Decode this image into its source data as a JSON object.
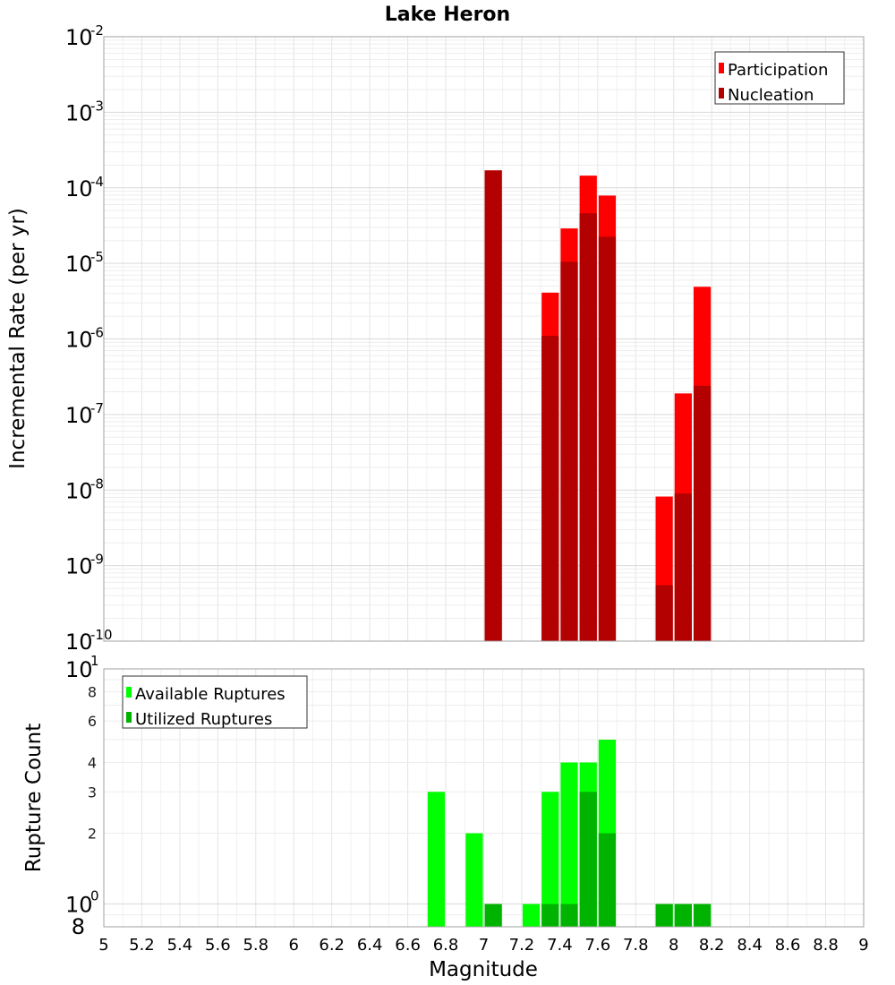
{
  "chart_data": {
    "title": "Lake Heron",
    "xlabel": "Magnitude",
    "xlim": [
      5,
      9
    ],
    "x_ticks": [
      "5",
      "5.2",
      "5.4",
      "5.6",
      "5.8",
      "6",
      "6.2",
      "6.4",
      "6.6",
      "6.8",
      "7",
      "7.2",
      "7.4",
      "7.6",
      "7.8",
      "8",
      "8.2",
      "8.4",
      "8.6",
      "8.8",
      "9"
    ],
    "grid": true,
    "panels": [
      {
        "type": "bar",
        "yscale": "log",
        "ylabel": "Incremental Rate (per yr)",
        "ylim": [
          1e-10,
          0.01
        ],
        "y_ticks": [
          {
            "base": "10",
            "exp": "-2"
          },
          {
            "base": "10",
            "exp": "-3"
          },
          {
            "base": "10",
            "exp": "-4"
          },
          {
            "base": "10",
            "exp": "-5"
          },
          {
            "base": "10",
            "exp": "-6"
          },
          {
            "base": "10",
            "exp": "-7"
          },
          {
            "base": "10",
            "exp": "-8"
          },
          {
            "base": "10",
            "exp": "-9"
          },
          {
            "base": "10",
            "exp": "-10"
          }
        ],
        "legend_position": "top-right",
        "series": [
          {
            "name": "Participation",
            "color": "#ff0000",
            "x": [
              7.05,
              7.35,
              7.45,
              7.55,
              7.65,
              7.95,
              8.05,
              8.15
            ],
            "values": [
              0.00017,
              4.1e-06,
              2.9e-05,
              0.000145,
              7.9e-05,
              8.2e-09,
              1.9e-07,
              4.9e-06
            ]
          },
          {
            "name": "Nucleation",
            "color": "#b30000",
            "x": [
              7.05,
              7.35,
              7.45,
              7.55,
              7.65,
              7.95,
              8.05,
              8.15
            ],
            "values": [
              0.00017,
              1.1e-06,
              1.05e-05,
              4.6e-05,
              2.25e-05,
              5.5e-10,
              9e-09,
              2.4e-07
            ]
          }
        ]
      },
      {
        "type": "bar",
        "yscale": "log",
        "ylabel": "Rupture Count",
        "ylim": [
          0.8,
          10
        ],
        "y_ticks": [
          {
            "value": 10,
            "base": "10",
            "exp": "1"
          },
          {
            "value": 8,
            "label": "8"
          },
          {
            "value": 6,
            "label": "6"
          },
          {
            "value": 4,
            "label": "4"
          },
          {
            "value": 3,
            "label": "3"
          },
          {
            "value": 2,
            "label": "2"
          },
          {
            "value": 1,
            "base": "10",
            "exp": "0"
          },
          {
            "value": 0.8,
            "label": "8"
          }
        ],
        "legend_position": "top-left",
        "series": [
          {
            "name": "Available Ruptures",
            "color": "#00ff00",
            "x": [
              6.75,
              6.95,
              7.05,
              7.25,
              7.35,
              7.45,
              7.55,
              7.65,
              7.95,
              8.05,
              8.15
            ],
            "values": [
              3,
              2,
              1,
              1,
              3,
              4,
              4,
              5,
              1,
              1,
              1
            ]
          },
          {
            "name": "Utilized Ruptures",
            "color": "#00b300",
            "x": [
              7.05,
              7.35,
              7.45,
              7.55,
              7.65,
              7.95,
              8.05,
              8.15
            ],
            "values": [
              1,
              1,
              1,
              3,
              2,
              1,
              1,
              1
            ]
          }
        ]
      }
    ]
  }
}
